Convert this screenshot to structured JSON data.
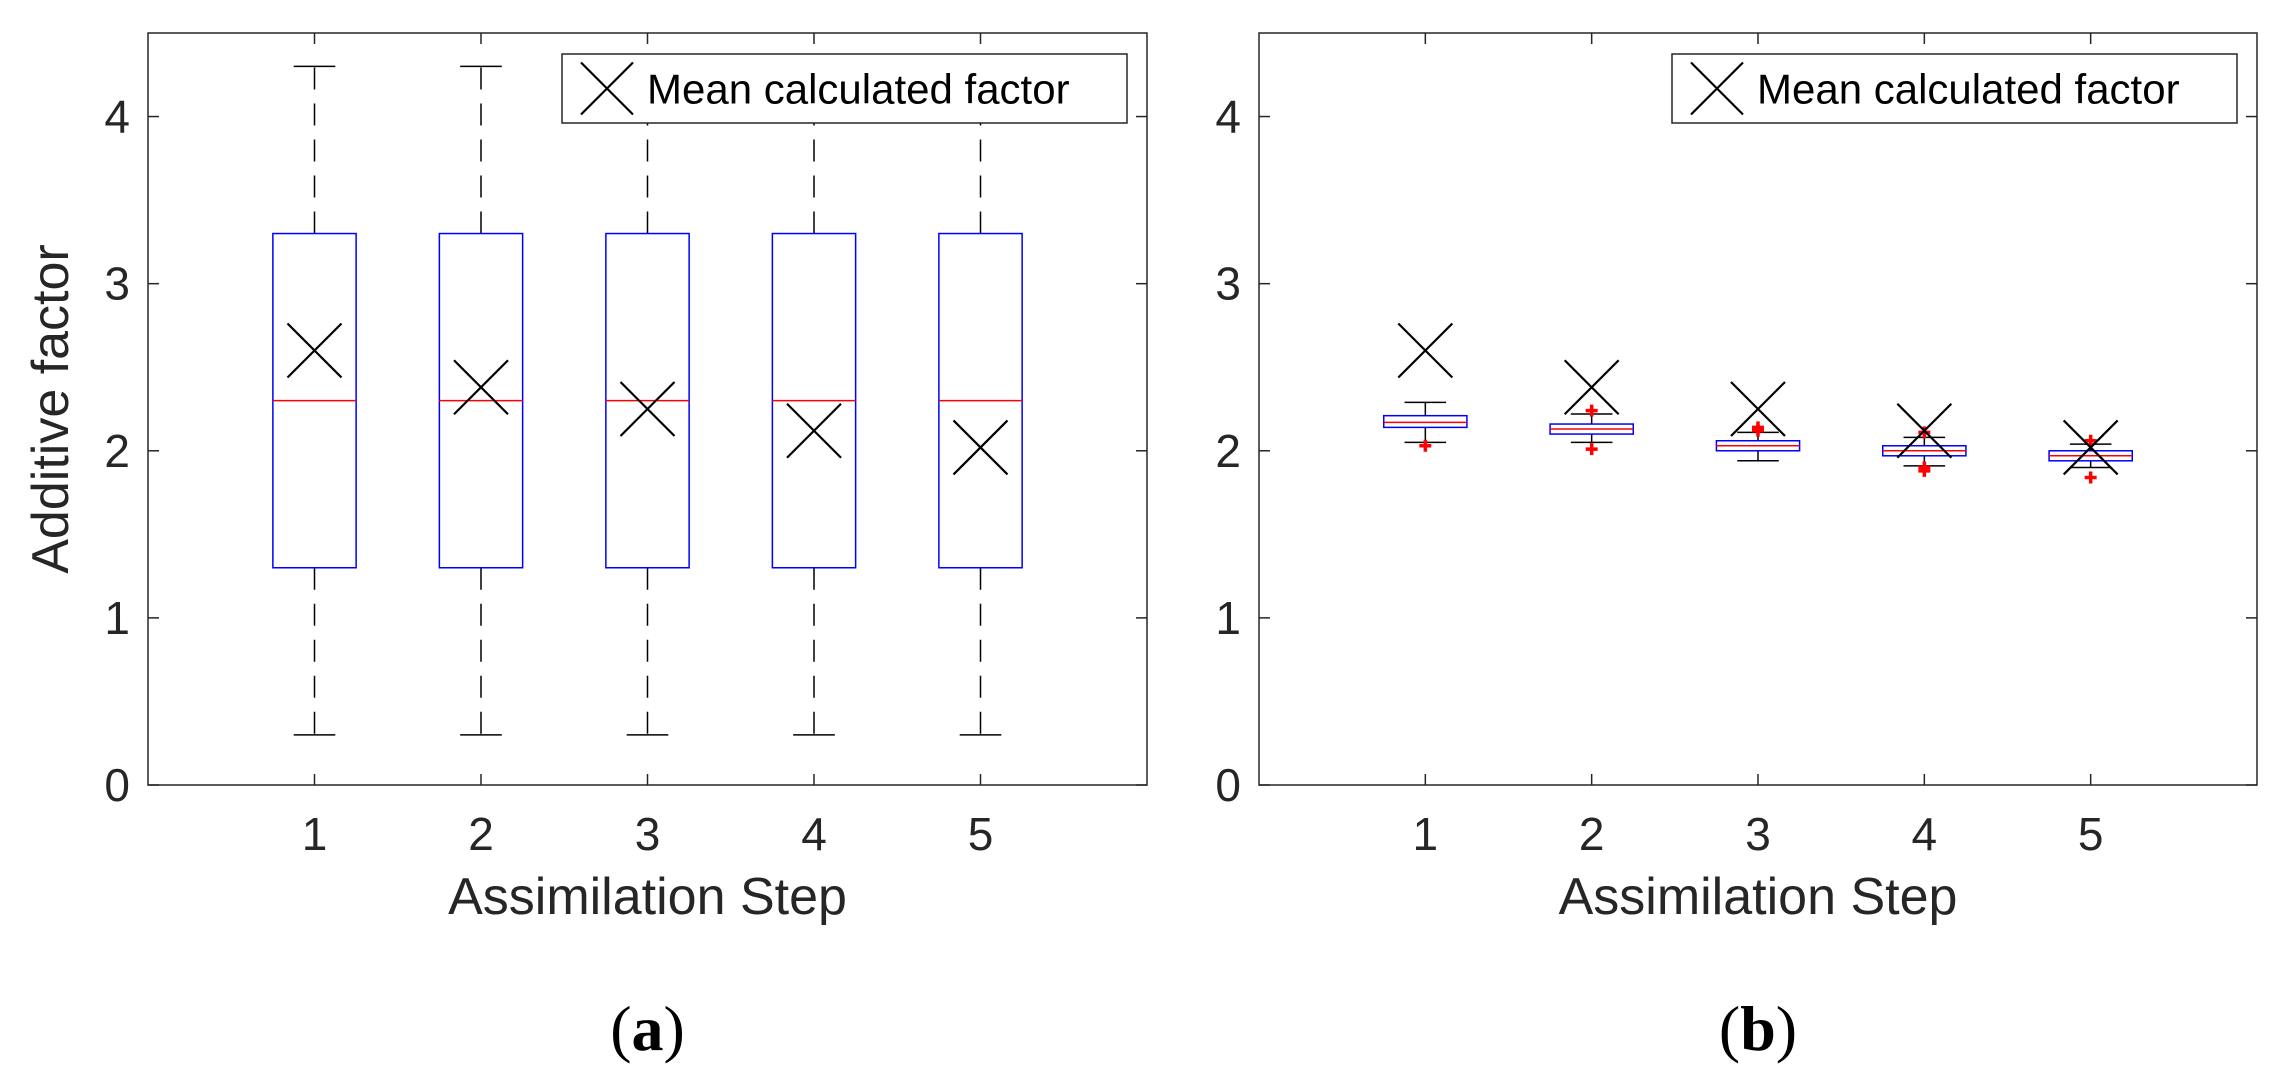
{
  "colors": {
    "box": "#0000ff",
    "median": "#ff0000",
    "whisker": "#000000",
    "outlier": "#ff0000",
    "mean_marker": "#000000",
    "axis": "#262626"
  },
  "chart_data": [
    {
      "type": "boxplot",
      "panel_label": "(a)",
      "panel_letter": "a",
      "xlabel": "Assimilation Step",
      "ylabel": "Additive factor",
      "ylim": [
        0,
        4.5
      ],
      "xlim": [
        0,
        6
      ],
      "yticks": [
        0,
        1,
        2,
        3,
        4
      ],
      "categories": [
        "1",
        "2",
        "3",
        "4",
        "5"
      ],
      "legend": {
        "label": "Mean calculated factor",
        "position": "top-right"
      },
      "boxes": [
        {
          "x": 1,
          "min": 0.3,
          "q1": 1.3,
          "median": 2.3,
          "q3": 3.3,
          "max": 4.3,
          "mean": 2.6,
          "outliers": []
        },
        {
          "x": 2,
          "min": 0.3,
          "q1": 1.3,
          "median": 2.3,
          "q3": 3.3,
          "max": 4.3,
          "mean": 2.38,
          "outliers": []
        },
        {
          "x": 3,
          "min": 0.3,
          "q1": 1.3,
          "median": 2.3,
          "q3": 3.3,
          "max": 4.3,
          "mean": 2.25,
          "outliers": []
        },
        {
          "x": 4,
          "min": 0.3,
          "q1": 1.3,
          "median": 2.3,
          "q3": 3.3,
          "max": 4.3,
          "mean": 2.12,
          "outliers": []
        },
        {
          "x": 5,
          "min": 0.3,
          "q1": 1.3,
          "median": 2.3,
          "q3": 3.3,
          "max": 4.3,
          "mean": 2.02,
          "outliers": []
        }
      ]
    },
    {
      "type": "boxplot",
      "panel_label": "(b)",
      "panel_letter": "b",
      "xlabel": "Assimilation Step",
      "ylabel": "",
      "ylim": [
        0,
        4.5
      ],
      "xlim": [
        0,
        6
      ],
      "yticks": [
        0,
        1,
        2,
        3,
        4
      ],
      "categories": [
        "1",
        "2",
        "3",
        "4",
        "5"
      ],
      "legend": {
        "label": "Mean calculated factor",
        "position": "top-right"
      },
      "boxes": [
        {
          "x": 1,
          "min": 2.05,
          "q1": 2.14,
          "median": 2.17,
          "q3": 2.21,
          "max": 2.29,
          "mean": 2.6,
          "outliers": [
            2.03
          ]
        },
        {
          "x": 2,
          "min": 2.05,
          "q1": 2.1,
          "median": 2.13,
          "q3": 2.16,
          "max": 2.22,
          "mean": 2.38,
          "outliers": [
            2.01,
            2.24
          ]
        },
        {
          "x": 3,
          "min": 1.94,
          "q1": 2.0,
          "median": 2.03,
          "q3": 2.06,
          "max": 2.11,
          "mean": 2.25,
          "outliers": [
            2.12,
            2.14
          ]
        },
        {
          "x": 4,
          "min": 1.91,
          "q1": 1.97,
          "median": 2.0,
          "q3": 2.03,
          "max": 2.08,
          "mean": 2.12,
          "outliers": [
            1.88,
            1.9,
            2.11
          ]
        },
        {
          "x": 5,
          "min": 1.9,
          "q1": 1.94,
          "median": 1.97,
          "q3": 2.0,
          "max": 2.04,
          "mean": 2.02,
          "outliers": [
            1.84,
            2.06
          ]
        }
      ]
    }
  ]
}
